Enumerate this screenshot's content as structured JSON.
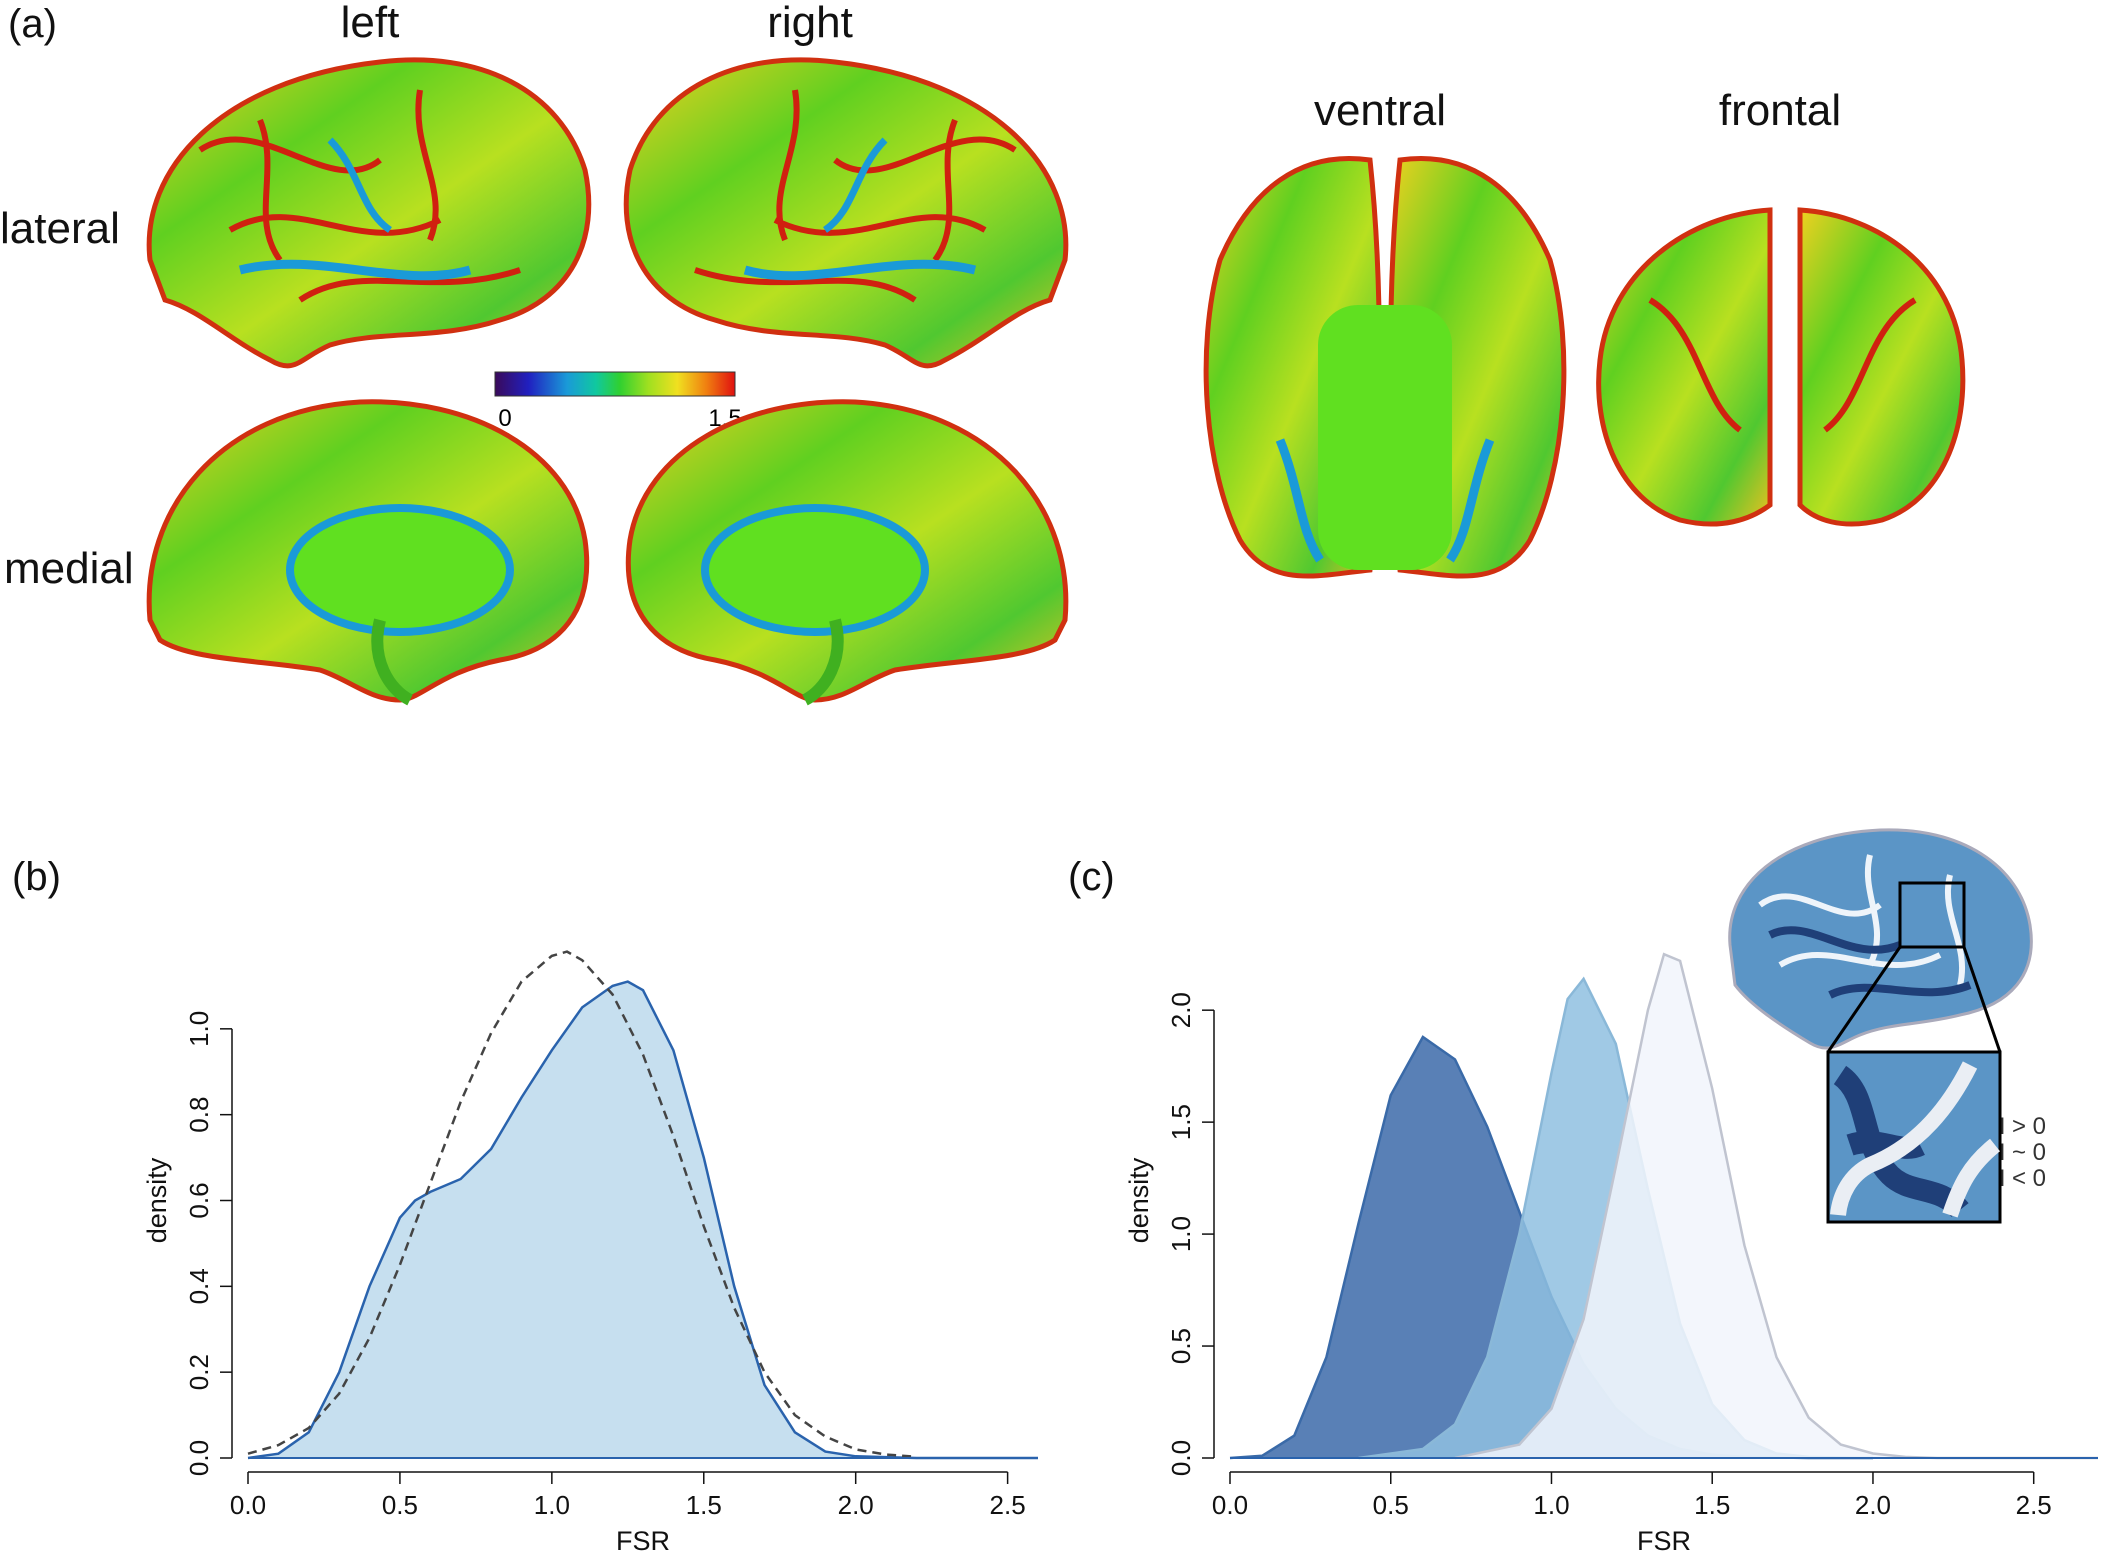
{
  "panel_a": {
    "label": "(a)",
    "views": {
      "left": "left",
      "right": "right",
      "ventral": "ventral",
      "frontal": "frontal",
      "lateral": "lateral",
      "medial": "medial"
    },
    "colorbar": {
      "min": "0",
      "max": "1.5",
      "colors": [
        "#3a0a5a",
        "#2020c0",
        "#1a9ad8",
        "#10c8a0",
        "#30d030",
        "#a0e020",
        "#f0e020",
        "#f08010",
        "#e01010"
      ]
    }
  },
  "chart_data": [
    {
      "panel": "(b)",
      "type": "area",
      "xlabel": "FSR",
      "ylabel": "density",
      "xlim": [
        0,
        2.6
      ],
      "ylim": [
        0,
        1.2
      ],
      "xticks": [
        "0.0",
        "0.5",
        "1.0",
        "1.5",
        "2.0",
        "2.5"
      ],
      "yticks": [
        "0.0",
        "0.2",
        "0.4",
        "0.6",
        "0.8",
        "1.0"
      ],
      "series": [
        {
          "style": "filled",
          "color": "#2a63ad",
          "fill": "#bcd9ec",
          "x": [
            0.0,
            0.1,
            0.2,
            0.3,
            0.4,
            0.5,
            0.55,
            0.6,
            0.7,
            0.8,
            0.9,
            1.0,
            1.1,
            1.2,
            1.25,
            1.3,
            1.4,
            1.5,
            1.6,
            1.7,
            1.8,
            1.9,
            2.0,
            2.2,
            2.6
          ],
          "y": [
            0.0,
            0.01,
            0.06,
            0.2,
            0.4,
            0.56,
            0.6,
            0.62,
            0.65,
            0.72,
            0.84,
            0.95,
            1.05,
            1.1,
            1.11,
            1.09,
            0.95,
            0.7,
            0.4,
            0.17,
            0.06,
            0.015,
            0.004,
            0.0,
            0.0
          ]
        },
        {
          "style": "dashed",
          "color": "#444444",
          "x": [
            0.0,
            0.1,
            0.2,
            0.3,
            0.4,
            0.5,
            0.6,
            0.7,
            0.8,
            0.9,
            1.0,
            1.05,
            1.1,
            1.2,
            1.3,
            1.4,
            1.5,
            1.6,
            1.7,
            1.8,
            1.9,
            2.0,
            2.1,
            2.2
          ],
          "y": [
            0.01,
            0.03,
            0.07,
            0.15,
            0.28,
            0.45,
            0.64,
            0.83,
            0.99,
            1.11,
            1.17,
            1.18,
            1.16,
            1.08,
            0.94,
            0.75,
            0.54,
            0.35,
            0.2,
            0.1,
            0.05,
            0.02,
            0.008,
            0.003
          ]
        }
      ]
    },
    {
      "panel": "(c)",
      "type": "area",
      "xlabel": "FSR",
      "ylabel": "density",
      "xlim": [
        0,
        2.7
      ],
      "ylim": [
        0,
        2.3
      ],
      "xticks": [
        "0.0",
        "0.5",
        "1.0",
        "1.5",
        "2.0",
        "2.5"
      ],
      "yticks": [
        "0.0",
        "0.5",
        "1.0",
        "1.5",
        "2.0"
      ],
      "legend_position": "right",
      "series": [
        {
          "name": "H > 0",
          "color": "#3a6aa8",
          "fill": "#5079b2",
          "x": [
            0.0,
            0.1,
            0.2,
            0.3,
            0.4,
            0.5,
            0.6,
            0.7,
            0.8,
            0.9,
            1.0,
            1.1,
            1.2,
            1.3,
            1.4,
            1.5,
            1.6,
            1.8,
            2.0
          ],
          "y": [
            0.0,
            0.01,
            0.1,
            0.45,
            1.05,
            1.62,
            1.88,
            1.78,
            1.48,
            1.1,
            0.72,
            0.42,
            0.22,
            0.1,
            0.04,
            0.015,
            0.005,
            0.0,
            0.0
          ]
        },
        {
          "name": "H ~ 0",
          "color": "#8ab8d8",
          "fill": "#8fbfe0",
          "x": [
            0.4,
            0.6,
            0.7,
            0.8,
            0.9,
            1.0,
            1.05,
            1.1,
            1.2,
            1.3,
            1.4,
            1.5,
            1.6,
            1.7,
            1.8,
            2.0
          ],
          "y": [
            0.0,
            0.04,
            0.15,
            0.45,
            1.0,
            1.72,
            2.05,
            2.14,
            1.85,
            1.2,
            0.6,
            0.24,
            0.08,
            0.02,
            0.005,
            0.0
          ]
        },
        {
          "name": "H < 0",
          "color": "#c0c4d0",
          "fill": "#f1f4fb",
          "x": [
            0.7,
            0.9,
            1.0,
            1.1,
            1.2,
            1.3,
            1.35,
            1.4,
            1.5,
            1.6,
            1.7,
            1.8,
            1.9,
            2.0,
            2.1,
            2.2,
            2.7
          ],
          "y": [
            0.0,
            0.06,
            0.22,
            0.62,
            1.3,
            2.0,
            2.25,
            2.22,
            1.65,
            0.95,
            0.45,
            0.18,
            0.06,
            0.02,
            0.005,
            0.0,
            0.0
          ]
        }
      ]
    }
  ]
}
